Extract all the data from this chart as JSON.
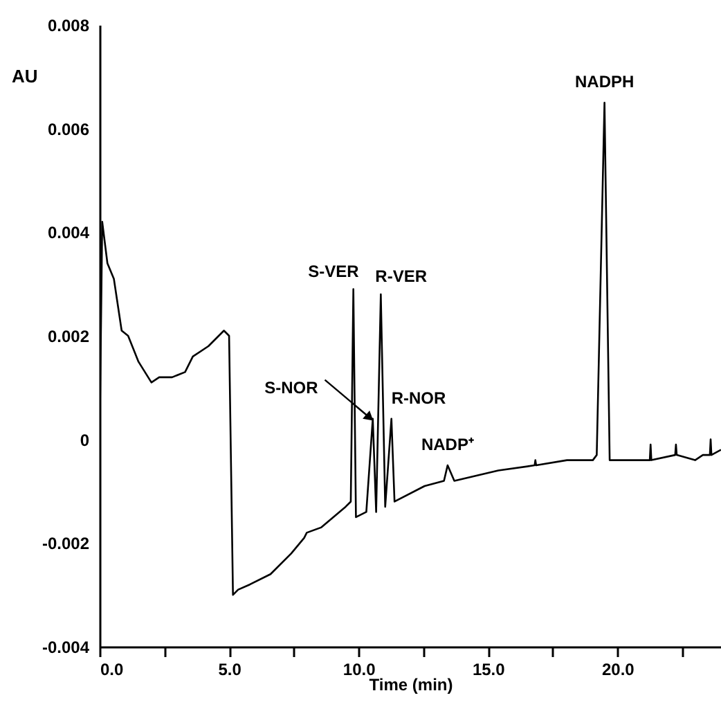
{
  "chart_data": {
    "type": "line",
    "xlabel": "Time (min)",
    "ylabel": "AU",
    "xlim": [
      0,
      24
    ],
    "ylim": [
      -0.004,
      0.008
    ],
    "xticks": [
      {
        "value": 0,
        "label": "0.0"
      },
      {
        "value": 2.5,
        "label": null
      },
      {
        "value": 5,
        "label": "5.0"
      },
      {
        "value": 7.5,
        "label": null
      },
      {
        "value": 10,
        "label": "10.0"
      },
      {
        "value": 12.5,
        "label": null
      },
      {
        "value": 15,
        "label": "15.0"
      },
      {
        "value": 17.5,
        "label": null
      },
      {
        "value": 20,
        "label": "20.0"
      },
      {
        "value": 22.5,
        "label": null
      }
    ],
    "yticks": [
      -0.004,
      -0.002,
      0,
      0.002,
      0.004,
      0.006,
      0.008
    ],
    "series": [
      {
        "color": "#000000",
        "x": [
          0,
          0.1,
          0.3,
          0.55,
          0.85,
          1.1,
          1.5,
          2.0,
          2.3,
          2.8,
          3.3,
          3.6,
          4.2,
          4.8,
          5.0,
          5.15,
          5.35,
          5.8,
          6.6,
          7.4,
          7.9,
          8.0,
          8.55,
          9.5,
          9.7,
          9.8,
          9.9,
          10.3,
          10.55,
          10.68,
          10.86,
          11.03,
          11.27,
          11.39,
          12.55,
          13.3,
          13.44,
          13.7,
          15.4,
          16.8,
          16.83,
          16.86,
          18.05,
          19.05,
          19.2,
          19.5,
          19.7,
          21.25,
          21.28,
          21.31,
          22.23,
          22.26,
          22.29,
          23.0,
          23.3,
          23.57,
          23.6,
          23.63,
          24
        ],
        "values": [
          0,
          0.0042,
          0.0034,
          0.0031,
          0.0021,
          0.002,
          0.0015,
          0.0011,
          0.0012,
          0.0012,
          0.0013,
          0.0016,
          0.0018,
          0.0021,
          0.002,
          -0.003,
          -0.0029,
          -0.0028,
          -0.0026,
          -0.0022,
          -0.0019,
          -0.0018,
          -0.0017,
          -0.0013,
          -0.0012,
          0.0029,
          -0.0015,
          -0.0014,
          0.0004,
          -0.0014,
          0.0028,
          -0.0013,
          0.0004,
          -0.0012,
          -0.0009,
          -0.0008,
          -0.0005,
          -0.0008,
          -0.0006,
          -0.0005,
          -0.0004,
          -0.0005,
          -0.0004,
          -0.0004,
          -0.0003,
          0.0065,
          -0.0004,
          -0.0004,
          -0.0001,
          -0.0004,
          -0.0003,
          -0.0001,
          -0.0003,
          -0.0004,
          -0.0003,
          -0.0003,
          0,
          -0.0003,
          -0.0002
        ]
      }
    ],
    "annotations": [
      {
        "text": "S-VER",
        "x": 9.8,
        "y": 0.0029
      },
      {
        "text": "S-NOR",
        "x": 10.55,
        "y": 0.0004
      },
      {
        "text": "R-VER",
        "x": 10.86,
        "y": 0.0028
      },
      {
        "text": "R-NOR",
        "x": 11.27,
        "y": 0.0004
      },
      {
        "text": "NADP⁺",
        "x": 13.44,
        "y": -0.0005
      },
      {
        "text": "NADPH",
        "x": 19.5,
        "y": 0.0065
      }
    ]
  }
}
